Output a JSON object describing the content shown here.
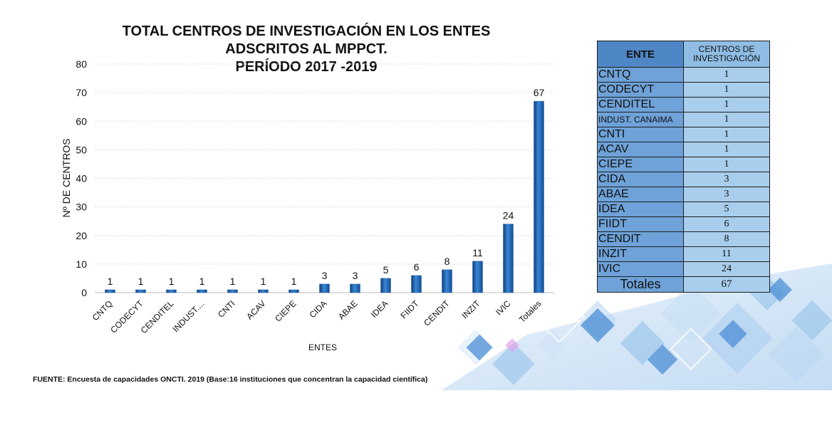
{
  "chart_data": {
    "type": "bar",
    "title_lines": [
      "TOTAL CENTROS DE INVESTIGACIÓN EN LOS ENTES",
      "ADSCRITOS AL MPPCT.",
      "PERÍODO 2017 -2019"
    ],
    "xlabel": "ENTES",
    "ylabel": "Nº DE CENTROS",
    "ylim": [
      0,
      80
    ],
    "yticks": [
      0,
      10,
      20,
      30,
      40,
      50,
      60,
      70,
      80
    ],
    "grid": true,
    "categories": [
      "CNTQ",
      "CODECYT",
      "CENDITEL",
      "INDUST....",
      "CNTI",
      "ACAV",
      "CIEPE",
      "CIDA",
      "ABAE",
      "IDEA",
      "FIIDT",
      "CENDIT",
      "INZIT",
      "IVIC",
      "Totales"
    ],
    "values": [
      1,
      1,
      1,
      1,
      1,
      1,
      1,
      3,
      3,
      5,
      6,
      8,
      11,
      24,
      67
    ],
    "bar_color": "#1f5fa8"
  },
  "table": {
    "header": [
      "ENTE",
      "CENTROS DE INVESTIGACIÓN"
    ],
    "rows": [
      {
        "ente": "CNTQ",
        "centros": "1"
      },
      {
        "ente": "CODECYT",
        "centros": "1"
      },
      {
        "ente": "CENDITEL",
        "centros": "1"
      },
      {
        "ente": "INDUST. CANAIMA",
        "centros": "1"
      },
      {
        "ente": "CNTI",
        "centros": "1"
      },
      {
        "ente": "ACAV",
        "centros": "1"
      },
      {
        "ente": "CIEPE",
        "centros": "1"
      },
      {
        "ente": "CIDA",
        "centros": "3"
      },
      {
        "ente": "ABAE",
        "centros": "3"
      },
      {
        "ente": "IDEA",
        "centros": "5"
      },
      {
        "ente": "FIIDT",
        "centros": "6"
      },
      {
        "ente": "CENDIT",
        "centros": "8"
      },
      {
        "ente": "INZIT",
        "centros": "11"
      },
      {
        "ente": "IVIC",
        "centros": "24"
      }
    ],
    "total": {
      "ente": "Totales",
      "centros": "67"
    }
  },
  "source_note": "FUENTE: Encuesta de capacidades ONCTI. 2019 (Base:16 instituciones que concentran la capacidad científica)"
}
